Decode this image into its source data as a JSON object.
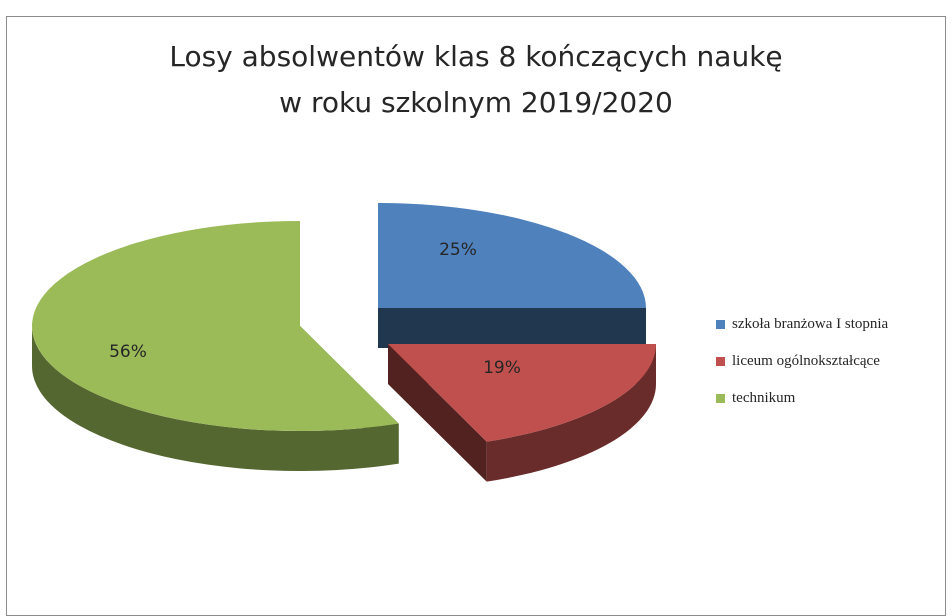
{
  "chart_data": {
    "type": "pie",
    "title_line1": "Losy absolwentów klas 8 kończących naukę",
    "title_line2": "w roku szkolnym 2019/2020",
    "slices": [
      {
        "label": "szkoła branżowa I stopnia",
        "value": 25,
        "display": "25%",
        "color": "#4f81bd"
      },
      {
        "label": "liceum ogólnokształcące",
        "value": 19,
        "display": "19%",
        "color": "#c0504d"
      },
      {
        "label": "technikum",
        "value": 56,
        "display": "56%",
        "color": "#9bbb59"
      }
    ],
    "exploded": true,
    "three_d": true,
    "legend_position": "right"
  }
}
